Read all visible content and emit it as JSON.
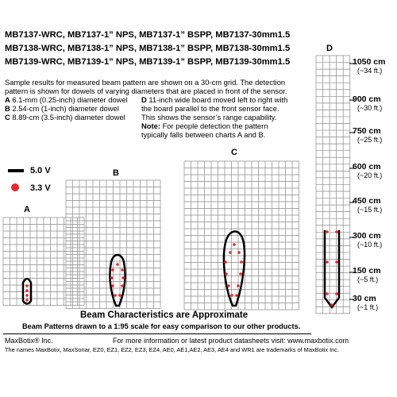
{
  "models": [
    "MB7137-WRC, MB7137-1” NPS, MB7137-1” BSPP, MB7137-30mm1.5",
    "MB7138-WRC, MB7138-1” NPS, MB7138-1” BSPP, MB7138-30mm1.5",
    "MB7139-WRC, MB7139-1” NPS, MB7139-1” BSPP, MB7139-30mm1.5"
  ],
  "description": {
    "intro_line1": "Sample results for measured beam pattern are shown on a 30-cm grid. The detection",
    "intro_line2": "pattern is shown for dowels of varying diameters that are placed in front of the sensor.",
    "a": {
      "key": "A",
      "text": " 6.1-mm (0.25-inch) diameter dowel"
    },
    "b": {
      "key": "B",
      "text": " 2.54-cm (1-inch) diameter dowel"
    },
    "c": {
      "key": "C",
      "text": " 8.89-cm (3.5-inch) diameter dowel"
    },
    "d_line1": {
      "key": "D",
      "text": " 11-inch wide board moved left to right with"
    },
    "d_line2": "the board parallel to the front sensor face.",
    "d_line3": "This shows the sensor’s range capability.",
    "note_key": "Note:",
    "note_line1": " For people detection the pattern",
    "note_line2": "typically falls between charts A and B."
  },
  "legend": {
    "v5": "5.0 V",
    "v33": "3.3 V",
    "v5_color": "#000000",
    "v33_color": "#e8262b"
  },
  "charts": {
    "a": "A",
    "b": "B",
    "c": "C",
    "d": "D"
  },
  "range_labels": [
    {
      "main": "1050 cm",
      "sub": "(~34 ft.)"
    },
    {
      "main": "900 cm",
      "sub": "(~30 ft.)"
    },
    {
      "main": "750 cm",
      "sub": "(~25 ft.)"
    },
    {
      "main": "600 cm",
      "sub": "(~20 ft.)"
    },
    {
      "main": "450 cm",
      "sub": "(~15 ft.)"
    },
    {
      "main": "300 cm",
      "sub": "(~10 ft.)"
    },
    {
      "main": "150 cm",
      "sub": "(~5 ft.)"
    },
    {
      "main": "30 cm",
      "sub": "(~1 ft.)"
    }
  ],
  "beam_title": "Beam Characteristics are Approximate",
  "beam_subtitle": "Beam Patterns drawn to a 1:95 scale for easy comparison to our other products.",
  "footer": {
    "company": "MaxBotix® Inc.",
    "info": "For more information or latest product datasheets visit:  www.maxbotix.com",
    "trademarks": "The names MaxBotix, MaxSonar, EZ0, EZ1, EZ2, EZ3, EZ4, AE0, AE1,AE2, AE3, AE4 and WR1 are trademarks of MaxBotix Inc."
  }
}
